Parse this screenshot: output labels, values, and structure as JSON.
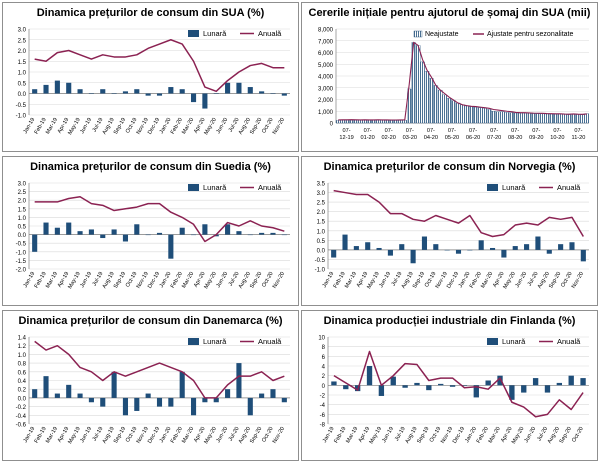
{
  "colors": {
    "bar": "#1F4E79",
    "line": "#8B2252",
    "hatch_stroke": "#1F4E79",
    "grid": "#d9d9d9",
    "axis": "#808080"
  },
  "chart_data": [
    {
      "type": "bar",
      "title": "Dinamica prețurilor de consum din SUA (%)",
      "legend_position": "top-right",
      "ylim": [
        -1.0,
        3.0
      ],
      "ystep": 0.5,
      "y_tick_labels": [
        "-1.0",
        "-0.5",
        "0.0",
        "0.5",
        "1.0",
        "1.5",
        "2.0",
        "2.5",
        "3.0"
      ],
      "categories": [
        "Jan-19",
        "Feb-19",
        "Mar-19",
        "Apr-19",
        "May-19",
        "Jun-19",
        "Jul-19",
        "Aug-19",
        "Sep-19",
        "Oct-19",
        "Nov-19",
        "Dec-19",
        "Jan-20",
        "Feb-20",
        "Mar-20",
        "Apr-20",
        "May-20",
        "Jun-20",
        "Jul-20",
        "Aug-20",
        "Sep-20",
        "Oct-20",
        "Nov-20"
      ],
      "x_tick_labels": [
        "Jan-19",
        "Feb-19",
        "Mar-19",
        "Apr-19",
        "May-19",
        "Jun-19",
        "Jul-19",
        "Aug-19",
        "Sep-19",
        "Oct-19",
        "Nov-19",
        "Dec-19",
        "Jan-20",
        "Feb-20",
        "Mar-20",
        "Apr-20",
        "May-20",
        "Jun-20",
        "Jul-20",
        "Aug-20",
        "Sep-20",
        "Oct-20",
        "Nov-20"
      ],
      "series": [
        {
          "name": "Lunară",
          "kind": "bar",
          "values": [
            0.2,
            0.4,
            0.6,
            0.5,
            0.2,
            0.0,
            0.2,
            0.0,
            0.1,
            0.2,
            -0.1,
            -0.1,
            0.3,
            0.2,
            -0.4,
            -0.7,
            0.0,
            0.5,
            0.5,
            0.3,
            0.1,
            0.0,
            -0.1
          ]
        },
        {
          "name": "Anuală",
          "kind": "line",
          "values": [
            1.6,
            1.5,
            1.9,
            2.0,
            1.8,
            1.6,
            1.8,
            1.7,
            1.7,
            1.8,
            2.1,
            2.3,
            2.5,
            2.3,
            1.5,
            0.3,
            0.1,
            0.6,
            1.0,
            1.3,
            1.4,
            1.2,
            1.2
          ]
        }
      ]
    },
    {
      "type": "bar",
      "title": "Cererile inițiale pentru ajutorul de șomaj din SUA (mii)",
      "legend_position": "top-right",
      "ylim": [
        0,
        8000
      ],
      "ystep": 1000,
      "y_tick_labels": [
        "0",
        "1,000",
        "2,000",
        "3,000",
        "4,000",
        "5,000",
        "6,000",
        "7,000",
        "8,000"
      ],
      "x_tick_labels": [
        "07-12-19",
        "07-01-20",
        "07-02-20",
        "07-03-20",
        "07-04-20",
        "07-05-20",
        "07-06-20",
        "07-07-20",
        "07-08-20",
        "07-09-20",
        "07-10-20",
        "07-11-20"
      ],
      "series": [
        {
          "name": "Neajustate",
          "kind": "bar",
          "values": [
            220,
            230,
            225,
            230,
            240,
            235,
            230,
            225,
            235,
            230,
            225,
            220,
            215,
            215,
            220,
            230,
            2900,
            6850,
            6600,
            5200,
            4400,
            3800,
            3200,
            2800,
            2400,
            2100,
            1900,
            1700,
            1550,
            1450,
            1400,
            1350,
            1300,
            1250,
            1150,
            1000,
            950,
            950,
            900,
            880,
            850,
            840,
            830,
            820,
            800,
            790,
            780,
            770,
            760,
            750,
            760,
            740,
            720,
            750,
            730,
            710,
            800
          ]
        },
        {
          "name": "Ajustate pentru sezonalitate",
          "kind": "line",
          "values": [
            260,
            270,
            275,
            280,
            270,
            265,
            270,
            265,
            260,
            270,
            265,
            260,
            255,
            255,
            260,
            270,
            3300,
            6870,
            6600,
            5400,
            4500,
            3900,
            3200,
            2800,
            2500,
            2200,
            1950,
            1700,
            1550,
            1480,
            1420,
            1400,
            1350,
            1300,
            1250,
            1150,
            1100,
            1050,
            1000,
            960,
            900,
            880,
            880,
            860,
            840,
            830,
            820,
            800,
            790,
            780,
            780,
            760,
            750,
            770,
            750,
            740,
            770
          ]
        }
      ]
    },
    {
      "type": "bar",
      "title": "Dinamica prețurilor de consum din Suedia (%)",
      "legend_position": "top-right",
      "ylim": [
        -2.0,
        3.0
      ],
      "ystep": 0.5,
      "y_tick_labels": [
        "-2.0",
        "-1.5",
        "-1.0",
        "-0.5",
        "0.0",
        "0.5",
        "1.0",
        "1.5",
        "2.0",
        "2.5",
        "3.0"
      ],
      "categories": [
        "Jan-19",
        "Feb-19",
        "Mar-19",
        "Apr-19",
        "May-19",
        "Jun-19",
        "Jul-19",
        "Aug-19",
        "Sep-19",
        "Oct-19",
        "Nov-19",
        "Dec-19",
        "Jan-20",
        "Feb-20",
        "Mar-20",
        "Apr-20",
        "May-20",
        "Jun-20",
        "Jul-20",
        "Aug-20",
        "Sep-20",
        "Oct-20",
        "Nov-20"
      ],
      "x_tick_labels": [
        "Jan-19",
        "Feb-19",
        "Mar-19",
        "Apr-19",
        "May-19",
        "Jun-19",
        "Jul-19",
        "Aug-19",
        "Sep-19",
        "Oct-19",
        "Nov-19",
        "Dec-19",
        "Jan-20",
        "Feb-20",
        "Mar-20",
        "Apr-20",
        "May-20",
        "Jun-20",
        "Jul-20",
        "Aug-20",
        "Sep-20",
        "Oct-20",
        "Nov-20"
      ],
      "series": [
        {
          "name": "Lunară",
          "kind": "bar",
          "values": [
            -1.0,
            0.7,
            0.4,
            0.7,
            0.2,
            0.3,
            -0.2,
            0.3,
            -0.4,
            0.6,
            0.0,
            0.1,
            -1.4,
            0.4,
            0.0,
            0.6,
            -0.1,
            0.6,
            0.2,
            0.0,
            0.1,
            0.1,
            0.0
          ]
        },
        {
          "name": "Anuală",
          "kind": "line",
          "values": [
            1.9,
            1.9,
            1.9,
            2.1,
            2.2,
            1.8,
            1.7,
            1.4,
            1.5,
            1.6,
            1.8,
            1.8,
            1.3,
            1.0,
            0.6,
            -0.4,
            0.0,
            0.7,
            0.5,
            0.8,
            0.5,
            0.4,
            0.2
          ]
        }
      ]
    },
    {
      "type": "bar",
      "title": "Dinamica prețurilor de consum din Norvegia (%)",
      "legend_position": "top-right",
      "ylim": [
        -1.0,
        3.5
      ],
      "ystep": 0.5,
      "y_tick_labels": [
        "-1.0",
        "-0.5",
        "0.0",
        "0.5",
        "1.0",
        "1.5",
        "2.0",
        "2.5",
        "3.0",
        "3.5"
      ],
      "categories": [
        "Jan-19",
        "Feb-19",
        "Mar-19",
        "Apr-19",
        "May-19",
        "Jun-19",
        "Jul-19",
        "Aug-19",
        "Sep-19",
        "Oct-19",
        "Nov-19",
        "Dec-19",
        "Jan-20",
        "Feb-20",
        "Mar-20",
        "Apr-20",
        "May-20",
        "Jun-20",
        "Jul-20",
        "Aug-20",
        "Sep-20",
        "Oct-20",
        "Nov-20"
      ],
      "x_tick_labels": [
        "Jan-19",
        "Feb-19",
        "Mar-19",
        "Apr-19",
        "May-19",
        "Jun-19",
        "Jul-19",
        "Aug-19",
        "Sep-19",
        "Oct-19",
        "Nov-19",
        "Dec-19",
        "Jan-20",
        "Feb-20",
        "Mar-20",
        "Apr-20",
        "May-20",
        "Jun-20",
        "Jul-20",
        "Aug-20",
        "Sep-20",
        "Oct-20",
        "Nov-20"
      ],
      "series": [
        {
          "name": "Lunară",
          "kind": "bar",
          "values": [
            -0.4,
            0.8,
            0.2,
            0.4,
            0.1,
            -0.3,
            0.3,
            -0.7,
            0.7,
            0.3,
            0.0,
            -0.2,
            0.0,
            0.5,
            0.1,
            -0.4,
            0.2,
            0.3,
            0.7,
            -0.2,
            0.3,
            0.4,
            -0.6
          ]
        },
        {
          "name": "Anuală",
          "kind": "line",
          "values": [
            3.1,
            3.0,
            2.9,
            2.9,
            2.5,
            1.9,
            1.9,
            1.6,
            1.5,
            1.8,
            1.6,
            1.4,
            1.8,
            0.9,
            0.7,
            0.8,
            1.3,
            1.4,
            1.3,
            1.7,
            1.6,
            1.7,
            0.7
          ]
        }
      ]
    },
    {
      "type": "bar",
      "title": "Dinamica prețurilor de consum din Danemarca (%)",
      "legend_position": "top-right",
      "ylim": [
        -0.6,
        1.4
      ],
      "ystep": 0.2,
      "y_tick_labels": [
        "-0.6",
        "-0.4",
        "-0.2",
        "0.0",
        "0.2",
        "0.4",
        "0.6",
        "0.8",
        "1.0",
        "1.2",
        "1.4"
      ],
      "categories": [
        "Jan-19",
        "Feb-19",
        "Mar-19",
        "Apr-19",
        "May-19",
        "Jun-19",
        "Jul-19",
        "Aug-19",
        "Sep-19",
        "Oct-19",
        "Nov-19",
        "Dec-19",
        "Jan-20",
        "Feb-20",
        "Mar-20",
        "Apr-20",
        "May-20",
        "Jun-20",
        "Jul-20",
        "Aug-20",
        "Sep-20",
        "Oct-20",
        "Nov-20"
      ],
      "x_tick_labels": [
        "Jan-19",
        "Feb-19",
        "Mar-19",
        "Apr-19",
        "May-19",
        "Jun-19",
        "Jul-19",
        "Aug-19",
        "Sep-19",
        "Oct-19",
        "Nov-19",
        "Dec-19",
        "Jan-20",
        "Feb-20",
        "Mar-20",
        "Apr-20",
        "May-20",
        "Jun-20",
        "Jul-20",
        "Aug-20",
        "Sep-20",
        "Oct-20",
        "Nov-20"
      ],
      "series": [
        {
          "name": "Lunară",
          "kind": "bar",
          "values": [
            0.2,
            0.5,
            0.1,
            0.3,
            0.1,
            -0.1,
            -0.2,
            0.6,
            -0.4,
            -0.3,
            0.1,
            -0.2,
            -0.2,
            0.6,
            -0.4,
            -0.1,
            -0.1,
            0.2,
            0.8,
            -0.4,
            0.1,
            0.2,
            -0.1
          ]
        },
        {
          "name": "Anuală",
          "kind": "line",
          "values": [
            1.3,
            1.1,
            1.2,
            1.0,
            0.7,
            0.6,
            0.4,
            0.6,
            0.5,
            0.6,
            0.7,
            0.8,
            0.7,
            0.6,
            0.4,
            0.0,
            0.0,
            0.3,
            0.5,
            0.5,
            0.6,
            0.4,
            0.5
          ]
        }
      ]
    },
    {
      "type": "bar",
      "title": "Dinamica producției industriale din Finlanda (%)",
      "legend_position": "top-right",
      "ylim": [
        -8,
        10
      ],
      "ystep": 2,
      "y_tick_labels": [
        "-8",
        "-6",
        "-4",
        "-2",
        "0",
        "2",
        "4",
        "6",
        "8",
        "10"
      ],
      "categories": [
        "Jan-19",
        "Feb-19",
        "Mar-19",
        "Apr-19",
        "May-19",
        "Jun-19",
        "Jul-19",
        "Aug-19",
        "Sep-19",
        "Oct-19",
        "Nov-19",
        "Dec-19",
        "Jan-20",
        "Feb-20",
        "Mar-20",
        "Apr-20",
        "May-20",
        "Jun-20",
        "Jul-20",
        "Aug-20",
        "Sep-20",
        "Oct-20"
      ],
      "x_tick_labels": [
        "Jan-19",
        "Feb-19",
        "Mar-19",
        "Apr-19",
        "May-19",
        "Jun-19",
        "Jul-19",
        "Aug-19",
        "Sep-19",
        "Oct-19",
        "Nov-19",
        "Dec-19",
        "Jan-20",
        "Feb-20",
        "Mar-20",
        "Apr-20",
        "May-20",
        "Jun-20",
        "Jul-20",
        "Aug-20",
        "Sep-20",
        "Oct-20"
      ],
      "series": [
        {
          "name": "Lunară",
          "kind": "bar",
          "values": [
            0.8,
            -0.8,
            -1.2,
            4.0,
            -2.2,
            1.8,
            -0.5,
            0.5,
            -1.0,
            0.3,
            -0.3,
            -0.1,
            -2.5,
            1.0,
            2.0,
            -3.0,
            -1.5,
            1.5,
            -1.5,
            0.5,
            2.0,
            1.5
          ]
        },
        {
          "name": "Anuală",
          "kind": "line",
          "values": [
            2.0,
            0.5,
            -1.0,
            7.0,
            0.0,
            2.0,
            4.5,
            4.3,
            1.0,
            1.5,
            1.5,
            -0.5,
            -0.3,
            -0.8,
            1.5,
            -3.5,
            -4.5,
            -6.5,
            -6.0,
            -3.0,
            -5.0,
            -1.5
          ]
        }
      ]
    }
  ]
}
